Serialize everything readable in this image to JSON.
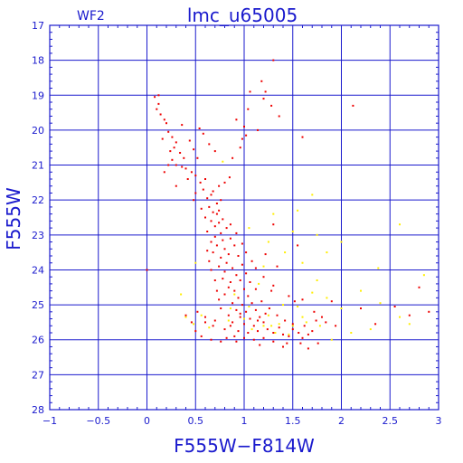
{
  "chart_data": {
    "type": "scatter",
    "title": "lmc_u65005",
    "tag": "WF2",
    "xlabel": "F555W−F814W",
    "ylabel": "F555W",
    "xlim": [
      -1,
      3
    ],
    "ylim": [
      28,
      17
    ],
    "y_inverted": true,
    "grid": true,
    "x_ticks": [
      -1,
      -0.5,
      0,
      0.5,
      1,
      1.5,
      2,
      2.5,
      3
    ],
    "x_tick_labels": [
      "−1",
      "−0.5",
      "0",
      "0.5",
      "1",
      "1.5",
      "2",
      "2.5",
      "3"
    ],
    "y_ticks": [
      17,
      18,
      19,
      20,
      21,
      22,
      23,
      24,
      25,
      26,
      27,
      28
    ],
    "y_tick_labels": [
      "17",
      "18",
      "19",
      "20",
      "21",
      "22",
      "23",
      "24",
      "25",
      "26",
      "27",
      "28"
    ],
    "colors": {
      "axes": "#1a1acd",
      "series_red": "#ee0000",
      "series_yellow": "#ffee00"
    },
    "series": [
      {
        "color": "red",
        "points": [
          [
            0.08,
            19.05
          ],
          [
            0.12,
            19.0
          ],
          [
            0.1,
            19.4
          ],
          [
            0.14,
            19.55
          ],
          [
            0.18,
            19.7
          ],
          [
            0.2,
            19.8
          ],
          [
            0.22,
            20.05
          ],
          [
            0.16,
            20.25
          ],
          [
            0.26,
            20.2
          ],
          [
            0.28,
            20.5
          ],
          [
            0.24,
            20.6
          ],
          [
            0.3,
            20.35
          ],
          [
            0.34,
            20.65
          ],
          [
            0.38,
            20.8
          ],
          [
            0.22,
            21.0
          ],
          [
            0.3,
            21.0
          ],
          [
            0.36,
            21.05
          ],
          [
            0.4,
            21.1
          ],
          [
            0.44,
            20.3
          ],
          [
            0.48,
            20.55
          ],
          [
            0.52,
            20.8
          ],
          [
            0.46,
            21.2
          ],
          [
            0.5,
            21.3
          ],
          [
            0.42,
            21.4
          ],
          [
            0.55,
            21.5
          ],
          [
            0.6,
            21.4
          ],
          [
            0.58,
            21.7
          ],
          [
            0.5,
            21.8
          ],
          [
            0.48,
            22.0
          ],
          [
            0.62,
            21.95
          ],
          [
            0.66,
            21.85
          ],
          [
            0.64,
            22.2
          ],
          [
            0.56,
            22.25
          ],
          [
            0.68,
            22.35
          ],
          [
            0.6,
            22.5
          ],
          [
            0.72,
            22.4
          ],
          [
            0.66,
            22.6
          ],
          [
            0.7,
            22.75
          ],
          [
            0.74,
            22.65
          ],
          [
            0.62,
            22.9
          ],
          [
            0.76,
            22.95
          ],
          [
            0.7,
            23.05
          ],
          [
            0.78,
            23.15
          ],
          [
            0.72,
            23.3
          ],
          [
            0.8,
            23.4
          ],
          [
            0.68,
            23.5
          ],
          [
            0.84,
            23.55
          ],
          [
            0.76,
            23.65
          ],
          [
            0.82,
            23.8
          ],
          [
            0.74,
            23.9
          ],
          [
            0.88,
            23.95
          ],
          [
            0.8,
            24.05
          ],
          [
            0.92,
            24.15
          ],
          [
            0.78,
            24.25
          ],
          [
            0.86,
            24.35
          ],
          [
            0.96,
            24.3
          ],
          [
            0.84,
            24.5
          ],
          [
            0.9,
            24.6
          ],
          [
            1.0,
            24.55
          ],
          [
            0.8,
            24.7
          ],
          [
            0.94,
            24.8
          ],
          [
            1.04,
            24.75
          ],
          [
            0.88,
            24.95
          ],
          [
            0.98,
            25.0
          ],
          [
            1.08,
            24.95
          ],
          [
            0.76,
            25.1
          ],
          [
            0.92,
            25.15
          ],
          [
            1.02,
            25.2
          ],
          [
            1.12,
            25.15
          ],
          [
            0.84,
            25.3
          ],
          [
            0.96,
            25.35
          ],
          [
            1.06,
            25.4
          ],
          [
            1.16,
            25.35
          ],
          [
            0.7,
            25.45
          ],
          [
            0.88,
            25.5
          ],
          [
            1.0,
            25.55
          ],
          [
            1.1,
            25.6
          ],
          [
            1.2,
            25.5
          ],
          [
            0.6,
            25.5
          ],
          [
            0.8,
            25.7
          ],
          [
            0.94,
            25.75
          ],
          [
            1.04,
            25.8
          ],
          [
            1.14,
            25.75
          ],
          [
            1.24,
            25.7
          ],
          [
            1.3,
            25.8
          ],
          [
            1.36,
            25.65
          ],
          [
            1.4,
            25.85
          ],
          [
            1.46,
            25.9
          ],
          [
            1.5,
            25.7
          ],
          [
            1.56,
            25.8
          ],
          [
            1.6,
            25.95
          ],
          [
            1.66,
            25.85
          ],
          [
            1.7,
            25.75
          ],
          [
            1.2,
            25.95
          ],
          [
            1.1,
            26.0
          ],
          [
            1.0,
            25.95
          ],
          [
            0.9,
            25.9
          ],
          [
            1.3,
            26.05
          ],
          [
            1.44,
            26.1
          ],
          [
            0.74,
            22.3
          ],
          [
            0.78,
            22.55
          ],
          [
            0.82,
            22.8
          ],
          [
            0.86,
            23.1
          ],
          [
            0.9,
            23.3
          ],
          [
            0.94,
            23.6
          ],
          [
            0.98,
            23.85
          ],
          [
            1.02,
            24.1
          ],
          [
            1.06,
            24.35
          ],
          [
            0.72,
            22.1
          ],
          [
            0.76,
            22.0
          ],
          [
            0.68,
            21.75
          ],
          [
            0.74,
            21.6
          ],
          [
            0.8,
            21.5
          ],
          [
            0.85,
            21.35
          ],
          [
            0.88,
            20.8
          ],
          [
            0.7,
            20.6
          ],
          [
            0.64,
            20.4
          ],
          [
            0.58,
            20.1
          ],
          [
            0.54,
            19.95
          ],
          [
            0.36,
            19.85
          ],
          [
            0.12,
            19.25
          ],
          [
            0.3,
            21.6
          ],
          [
            0.18,
            21.2
          ],
          [
            0.26,
            20.85
          ],
          [
            0.0,
            24.0
          ],
          [
            0.56,
            25.9
          ],
          [
            0.66,
            26.0
          ],
          [
            0.76,
            26.05
          ],
          [
            0.86,
            25.6
          ],
          [
            1.18,
            24.9
          ],
          [
            1.26,
            25.1
          ],
          [
            1.34,
            25.3
          ],
          [
            1.42,
            25.45
          ],
          [
            1.5,
            25.55
          ],
          [
            1.62,
            25.6
          ],
          [
            1.74,
            25.45
          ],
          [
            1.84,
            25.5
          ],
          [
            1.52,
            24.9
          ],
          [
            1.3,
            24.45
          ],
          [
            1.2,
            24.2
          ],
          [
            1.12,
            23.95
          ],
          [
            1.08,
            23.75
          ],
          [
            1.02,
            23.5
          ],
          [
            0.98,
            23.25
          ],
          [
            0.92,
            22.95
          ],
          [
            0.86,
            22.7
          ],
          [
            0.66,
            23.2
          ],
          [
            0.62,
            23.45
          ],
          [
            0.64,
            23.75
          ],
          [
            0.66,
            24.0
          ],
          [
            0.7,
            24.3
          ],
          [
            0.72,
            24.6
          ],
          [
            0.74,
            24.85
          ],
          [
            0.96,
            25.25
          ],
          [
            1.14,
            25.45
          ],
          [
            1.22,
            25.25
          ],
          [
            1.0,
            19.9
          ],
          [
            1.04,
            19.4
          ],
          [
            1.06,
            18.9
          ],
          [
            1.18,
            18.6
          ],
          [
            1.22,
            18.9
          ],
          [
            1.28,
            19.3
          ],
          [
            1.3,
            18.0
          ],
          [
            1.36,
            19.6
          ],
          [
            1.02,
            20.15
          ],
          [
            0.96,
            20.5
          ],
          [
            0.98,
            20.25
          ],
          [
            1.14,
            20.0
          ],
          [
            1.2,
            19.1
          ],
          [
            0.92,
            19.7
          ],
          [
            1.6,
            20.2
          ],
          [
            2.12,
            19.3
          ],
          [
            1.3,
            22.7
          ],
          [
            1.55,
            23.3
          ],
          [
            1.9,
            24.9
          ],
          [
            2.2,
            25.1
          ],
          [
            2.35,
            25.55
          ],
          [
            2.55,
            25.05
          ],
          [
            2.7,
            25.3
          ],
          [
            2.8,
            24.5
          ],
          [
            2.9,
            25.2
          ],
          [
            1.22,
            23.55
          ],
          [
            1.34,
            23.9
          ],
          [
            1.28,
            24.6
          ],
          [
            1.46,
            24.75
          ],
          [
            1.6,
            24.85
          ],
          [
            1.72,
            25.2
          ],
          [
            1.8,
            25.35
          ],
          [
            1.94,
            25.6
          ],
          [
            1.12,
            24.55
          ],
          [
            0.52,
            25.2
          ],
          [
            0.46,
            25.5
          ],
          [
            0.5,
            25.75
          ],
          [
            0.4,
            25.3
          ],
          [
            0.6,
            25.35
          ],
          [
            0.68,
            25.6
          ],
          [
            0.82,
            25.95
          ],
          [
            0.92,
            26.05
          ],
          [
            1.16,
            26.15
          ],
          [
            1.4,
            26.2
          ],
          [
            1.58,
            26.1
          ],
          [
            1.66,
            26.25
          ],
          [
            1.76,
            26.1
          ]
        ]
      },
      {
        "color": "yellow",
        "points": [
          [
            0.78,
            20.9
          ],
          [
            1.3,
            22.4
          ],
          [
            1.55,
            22.3
          ],
          [
            1.75,
            23.0
          ],
          [
            1.85,
            23.5
          ],
          [
            2.0,
            23.2
          ],
          [
            1.42,
            23.5
          ],
          [
            1.6,
            23.8
          ],
          [
            1.2,
            23.9
          ],
          [
            1.75,
            24.3
          ],
          [
            1.7,
            24.65
          ],
          [
            1.55,
            25.05
          ],
          [
            1.85,
            24.8
          ],
          [
            2.0,
            25.1
          ],
          [
            2.2,
            24.6
          ],
          [
            2.4,
            24.95
          ],
          [
            2.6,
            25.35
          ],
          [
            2.7,
            25.55
          ],
          [
            2.3,
            25.7
          ],
          [
            2.1,
            25.8
          ],
          [
            1.9,
            26.0
          ],
          [
            1.6,
            25.35
          ],
          [
            1.4,
            25.0
          ],
          [
            1.36,
            25.55
          ],
          [
            1.28,
            25.6
          ],
          [
            0.5,
            23.8
          ],
          [
            0.35,
            24.7
          ],
          [
            0.4,
            25.35
          ],
          [
            0.48,
            25.55
          ],
          [
            0.56,
            25.3
          ],
          [
            0.64,
            25.65
          ],
          [
            0.84,
            25.45
          ],
          [
            1.0,
            25.4
          ],
          [
            1.08,
            25.7
          ],
          [
            1.2,
            25.6
          ],
          [
            1.32,
            25.8
          ],
          [
            1.46,
            25.85
          ],
          [
            1.64,
            25.5
          ],
          [
            1.78,
            25.6
          ],
          [
            2.38,
            23.95
          ],
          [
            2.85,
            24.15
          ],
          [
            2.6,
            22.7
          ],
          [
            1.7,
            21.85
          ],
          [
            1.5,
            22.9
          ],
          [
            1.05,
            22.8
          ],
          [
            1.25,
            23.2
          ],
          [
            1.15,
            24.4
          ],
          [
            0.9,
            24.7
          ],
          [
            0.86,
            25.1
          ],
          [
            1.05,
            25.05
          ],
          [
            1.25,
            25.3
          ],
          [
            1.5,
            25.6
          ]
        ]
      }
    ]
  }
}
